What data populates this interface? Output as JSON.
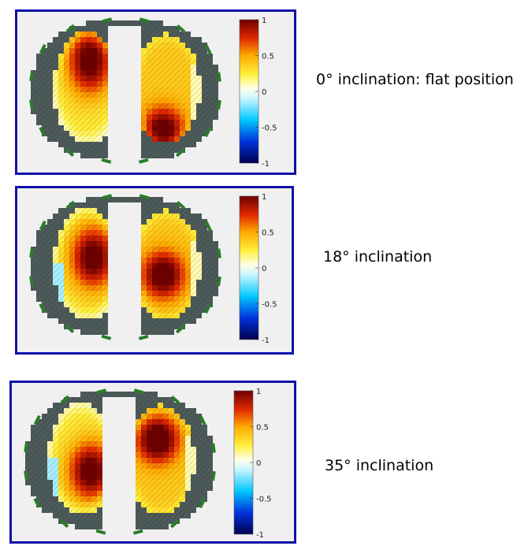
{
  "panels": [
    {
      "caption": "0° inclination: flat position",
      "tilt": 0
    },
    {
      "caption": "18° inclination",
      "tilt": 18
    },
    {
      "caption": "35° inclination",
      "tilt": 35
    }
  ],
  "colorbar": {
    "ticks": [
      "1",
      "0.5",
      "0",
      "-0.5",
      "-1"
    ],
    "range": [
      -1,
      1
    ]
  },
  "colors": {
    "frame": "#1010a8",
    "tissue": "#4d5a5a",
    "electrode": "#2a7d2a",
    "panel_bg": "#f0f0f0"
  }
}
